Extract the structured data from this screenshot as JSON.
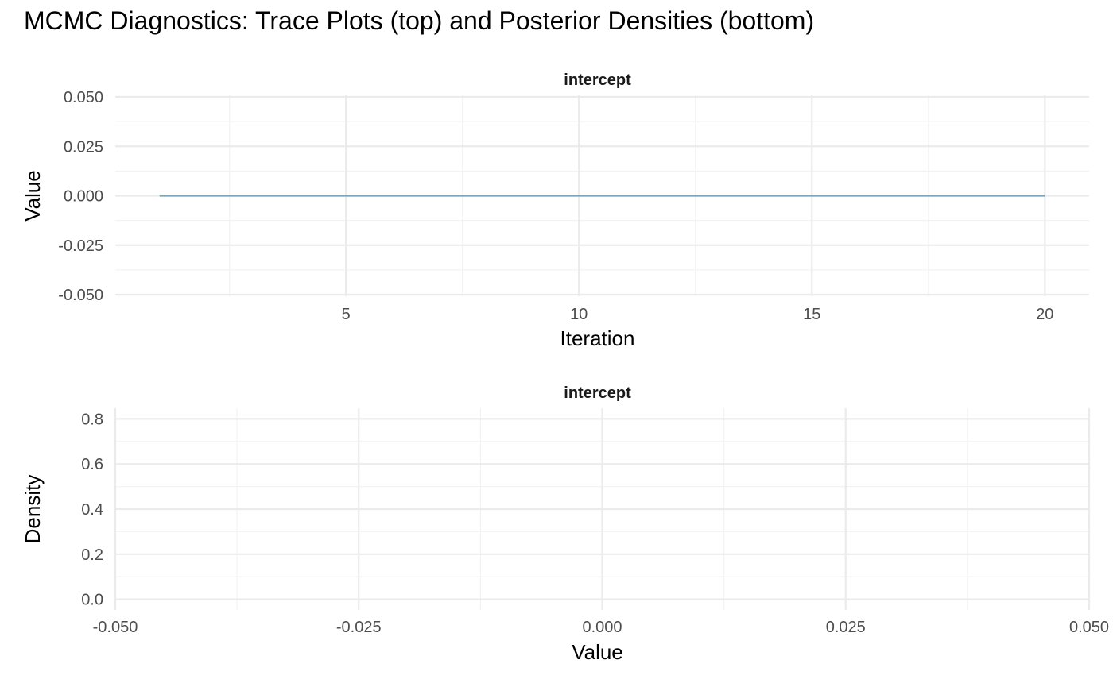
{
  "title": "MCMC Diagnostics: Trace Plots (top) and Posterior Densities (bottom)",
  "colors": {
    "trace_line": "#7aa5b8",
    "grid_major": "#ebebeb",
    "grid_minor": "#f3f3f3",
    "tick_text": "#4d4d4d"
  },
  "chart_data": [
    {
      "type": "line",
      "panel": "trace",
      "strip_label": "intercept",
      "xlabel": "Iteration",
      "ylabel": "Value",
      "xlim": [
        0.05,
        20.95
      ],
      "ylim": [
        -0.05,
        0.05
      ],
      "x_ticks": [
        5,
        10,
        15,
        20
      ],
      "x_tick_labels": [
        "5",
        "10",
        "15",
        "20"
      ],
      "x_minor": [
        2.5,
        7.5,
        12.5,
        17.5
      ],
      "y_ticks": [
        -0.05,
        -0.025,
        0,
        0.025,
        0.05
      ],
      "y_tick_labels": [
        "-0.050",
        "-0.025",
        "0.000",
        "0.025",
        "0.050"
      ],
      "y_minor": [
        -0.0375,
        -0.0125,
        0.0125,
        0.0375
      ],
      "grid": true,
      "series": [
        {
          "x": [
            1,
            2,
            3,
            4,
            5,
            6,
            7,
            8,
            9,
            10,
            11,
            12,
            13,
            14,
            15,
            16,
            17,
            18,
            19,
            20
          ],
          "y": [
            0,
            0,
            0,
            0,
            0,
            0,
            0,
            0,
            0,
            0,
            0,
            0,
            0,
            0,
            0,
            0,
            0,
            0,
            0,
            0
          ]
        }
      ]
    },
    {
      "type": "area",
      "panel": "density",
      "strip_label": "intercept",
      "xlabel": "Value",
      "ylabel": "Density",
      "xlim": [
        -0.05,
        0.05
      ],
      "ylim": [
        -0.04,
        0.84
      ],
      "x_ticks": [
        -0.05,
        -0.025,
        0,
        0.025,
        0.05
      ],
      "x_tick_labels": [
        "-0.050",
        "-0.025",
        "0.000",
        "0.025",
        "0.050"
      ],
      "x_minor": [
        -0.0375,
        -0.0125,
        0.0125,
        0.0375
      ],
      "y_ticks": [
        0,
        0.2,
        0.4,
        0.6,
        0.8
      ],
      "y_tick_labels": [
        "0.0",
        "0.2",
        "0.4",
        "0.6",
        "0.8"
      ],
      "y_minor": [
        0.1,
        0.3,
        0.5,
        0.7
      ],
      "grid": true,
      "series": []
    }
  ]
}
